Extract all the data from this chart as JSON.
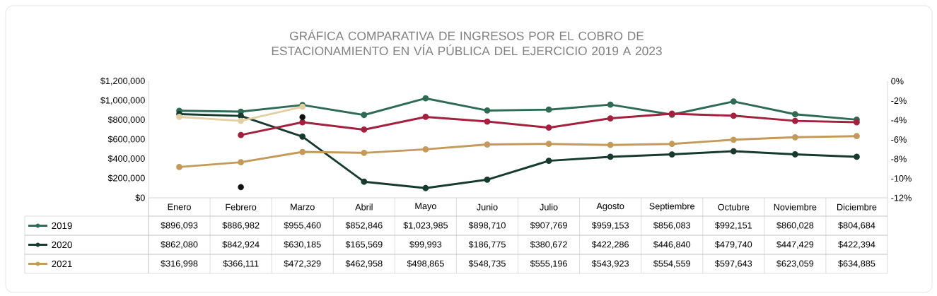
{
  "chart_data": {
    "type": "line",
    "title": "GRÁFICA COMPARATIVA DE INGRESOS POR EL COBRO DE ESTACIONAMIENTO EN VÍA PÚBLICA DEL EJERCICIO 2019 A 2023",
    "categories": [
      "Enero",
      "Febrero",
      "Marzo",
      "Abril",
      "Mayo",
      "Junio",
      "Julio",
      "Agosto",
      "Septiembre",
      "Octubre",
      "Noviembre",
      "Diciembre"
    ],
    "series": [
      {
        "name": "2019",
        "color": "#2e6b55",
        "values": [
          896093,
          886982,
          955460,
          852846,
          1023985,
          898710,
          907769,
          959153,
          856083,
          992151,
          860028,
          804684
        ],
        "value_labels": [
          "$896,093",
          "$886,982",
          "$955,460",
          "$852,846",
          "$1,023,985",
          "$898,710",
          "$907,769",
          "$959,153",
          "$856,083",
          "$992,151",
          "$860,028",
          "$804,684"
        ]
      },
      {
        "name": "2020",
        "color": "#173a2e",
        "values": [
          862080,
          842924,
          630185,
          165569,
          99993,
          186775,
          380672,
          422286,
          446840,
          479740,
          447429,
          422394
        ],
        "value_labels": [
          "$862,080",
          "$842,924",
          "$630,185",
          "$165,569",
          "$99,993",
          "$186,775",
          "$380,672",
          "$422,286",
          "$446,840",
          "$479,740",
          "$447,429",
          "$422,394"
        ]
      },
      {
        "name": "2021",
        "color": "#c49a5a",
        "values": [
          316998,
          366111,
          472329,
          462958,
          498865,
          548735,
          555196,
          543923,
          554559,
          597643,
          623059,
          634885
        ],
        "value_labels": [
          "$316,998",
          "$366,111",
          "$472,329",
          "$462,958",
          "$498,865",
          "$548,735",
          "$555,196",
          "$543,923",
          "$554,559",
          "$597,643",
          "$623,059",
          "$634,885"
        ]
      },
      {
        "color": "#a3203f",
        "values": [
          null,
          646000,
          778000,
          702000,
          833000,
          785000,
          722000,
          818000,
          866000,
          845000,
          792000,
          778000
        ]
      },
      {
        "color": "#e3cfa3",
        "values": [
          833000,
          792000,
          937000,
          null,
          null,
          null,
          null,
          null,
          null,
          null,
          null,
          null
        ]
      },
      {
        "type": "scatter",
        "axis": "y2",
        "color": "#111111",
        "values": [
          null,
          -10.9,
          -3.7,
          null,
          null,
          null,
          null,
          null,
          null,
          null,
          null,
          null
        ]
      }
    ],
    "ylim": [
      0,
      1200000
    ],
    "yticks": [
      {
        "value": 0,
        "label": "$0"
      },
      {
        "value": 200000,
        "label": "$200,000"
      },
      {
        "value": 400000,
        "label": "$400,000"
      },
      {
        "value": 600000,
        "label": "$600,000"
      },
      {
        "value": 800000,
        "label": "$800,000"
      },
      {
        "value": 1000000,
        "label": "$1,000,000"
      },
      {
        "value": 1200000,
        "label": "$1,200,000"
      }
    ],
    "y2lim": [
      -12,
      0
    ],
    "y2ticks": [
      {
        "value": 0,
        "label": "0%"
      },
      {
        "value": -2,
        "label": "-2%"
      },
      {
        "value": -4,
        "label": "-4%"
      },
      {
        "value": -6,
        "label": "-6%"
      },
      {
        "value": -8,
        "label": "-8%"
      },
      {
        "value": -10,
        "label": "-10%"
      },
      {
        "value": -12,
        "label": "-12%"
      }
    ],
    "legend": "bottom left",
    "marker": "circle",
    "line_style": "solid",
    "grid": false
  }
}
